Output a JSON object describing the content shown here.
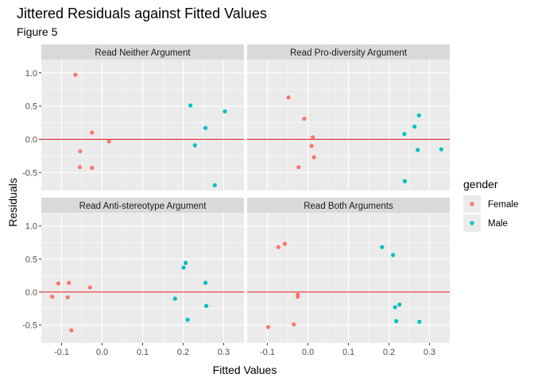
{
  "chart_data": {
    "type": "scatter",
    "title": "Jittered Residuals against Fitted Values",
    "subtitle": "Figure 5",
    "xlabel": "Fitted Values",
    "ylabel": "Residuals",
    "xlim": [
      -0.15,
      0.35
    ],
    "ylim": [
      -0.77,
      1.2
    ],
    "x_ticks": [
      -0.1,
      0.0,
      0.1,
      0.2,
      0.3
    ],
    "x_tick_labels": [
      "-0.1",
      "0.0",
      "0.1",
      "0.2",
      "0.3"
    ],
    "y_ticks": [
      -0.5,
      0.0,
      0.5,
      1.0
    ],
    "y_tick_labels": [
      "-0.5",
      "0.0",
      "0.5",
      "1.0"
    ],
    "reference_line": {
      "y": 0,
      "color": "#e31a1c"
    },
    "grid": true,
    "legend": {
      "title": "gender",
      "position": "right",
      "entries": [
        {
          "label": "Female",
          "color": "#F8766D"
        },
        {
          "label": "Male",
          "color": "#00BFC4"
        }
      ]
    },
    "panels": [
      {
        "title": "Read Neither Argument",
        "series": [
          {
            "group": "Female",
            "points": [
              [
                -0.066,
                0.97
              ],
              [
                -0.025,
                0.1
              ],
              [
                0.017,
                -0.03
              ],
              [
                -0.054,
                -0.18
              ],
              [
                -0.055,
                -0.42
              ],
              [
                -0.025,
                -0.43
              ]
            ]
          },
          {
            "group": "Male",
            "points": [
              [
                0.218,
                0.51
              ],
              [
                0.303,
                0.42
              ],
              [
                0.255,
                0.17
              ],
              [
                0.229,
                -0.09
              ],
              [
                0.278,
                -0.69
              ]
            ]
          }
        ]
      },
      {
        "title": "Read Pro-diversity Argument",
        "series": [
          {
            "group": "Female",
            "points": [
              [
                -0.048,
                0.63
              ],
              [
                -0.009,
                0.31
              ],
              [
                0.012,
                0.03
              ],
              [
                0.009,
                -0.1
              ],
              [
                0.015,
                -0.27
              ],
              [
                -0.023,
                -0.42
              ]
            ]
          },
          {
            "group": "Male",
            "points": [
              [
                0.274,
                0.36
              ],
              [
                0.263,
                0.19
              ],
              [
                0.238,
                0.08
              ],
              [
                0.271,
                -0.16
              ],
              [
                0.329,
                -0.15
              ],
              [
                0.239,
                -0.63
              ]
            ]
          }
        ]
      },
      {
        "title": "Read Anti-stereotype Argument",
        "series": [
          {
            "group": "Female",
            "points": [
              [
                -0.108,
                0.13
              ],
              [
                -0.082,
                0.14
              ],
              [
                -0.03,
                0.07
              ],
              [
                -0.123,
                -0.07
              ],
              [
                -0.085,
                -0.08
              ],
              [
                -0.076,
                -0.58
              ]
            ]
          },
          {
            "group": "Male",
            "points": [
              [
                0.206,
                0.44
              ],
              [
                0.201,
                0.37
              ],
              [
                0.255,
                0.14
              ],
              [
                0.18,
                -0.1
              ],
              [
                0.257,
                -0.21
              ],
              [
                0.211,
                -0.42
              ]
            ]
          }
        ]
      },
      {
        "title": "Read Both Arguments",
        "series": [
          {
            "group": "Female",
            "points": [
              [
                -0.057,
                0.73
              ],
              [
                -0.073,
                0.68
              ],
              [
                -0.025,
                -0.04
              ],
              [
                -0.025,
                -0.07
              ],
              [
                -0.035,
                -0.49
              ],
              [
                -0.098,
                -0.53
              ]
            ]
          },
          {
            "group": "Male",
            "points": [
              [
                0.183,
                0.68
              ],
              [
                0.21,
                0.56
              ],
              [
                0.226,
                -0.19
              ],
              [
                0.215,
                -0.23
              ],
              [
                0.218,
                -0.44
              ],
              [
                0.275,
                -0.45
              ]
            ]
          }
        ]
      }
    ]
  }
}
